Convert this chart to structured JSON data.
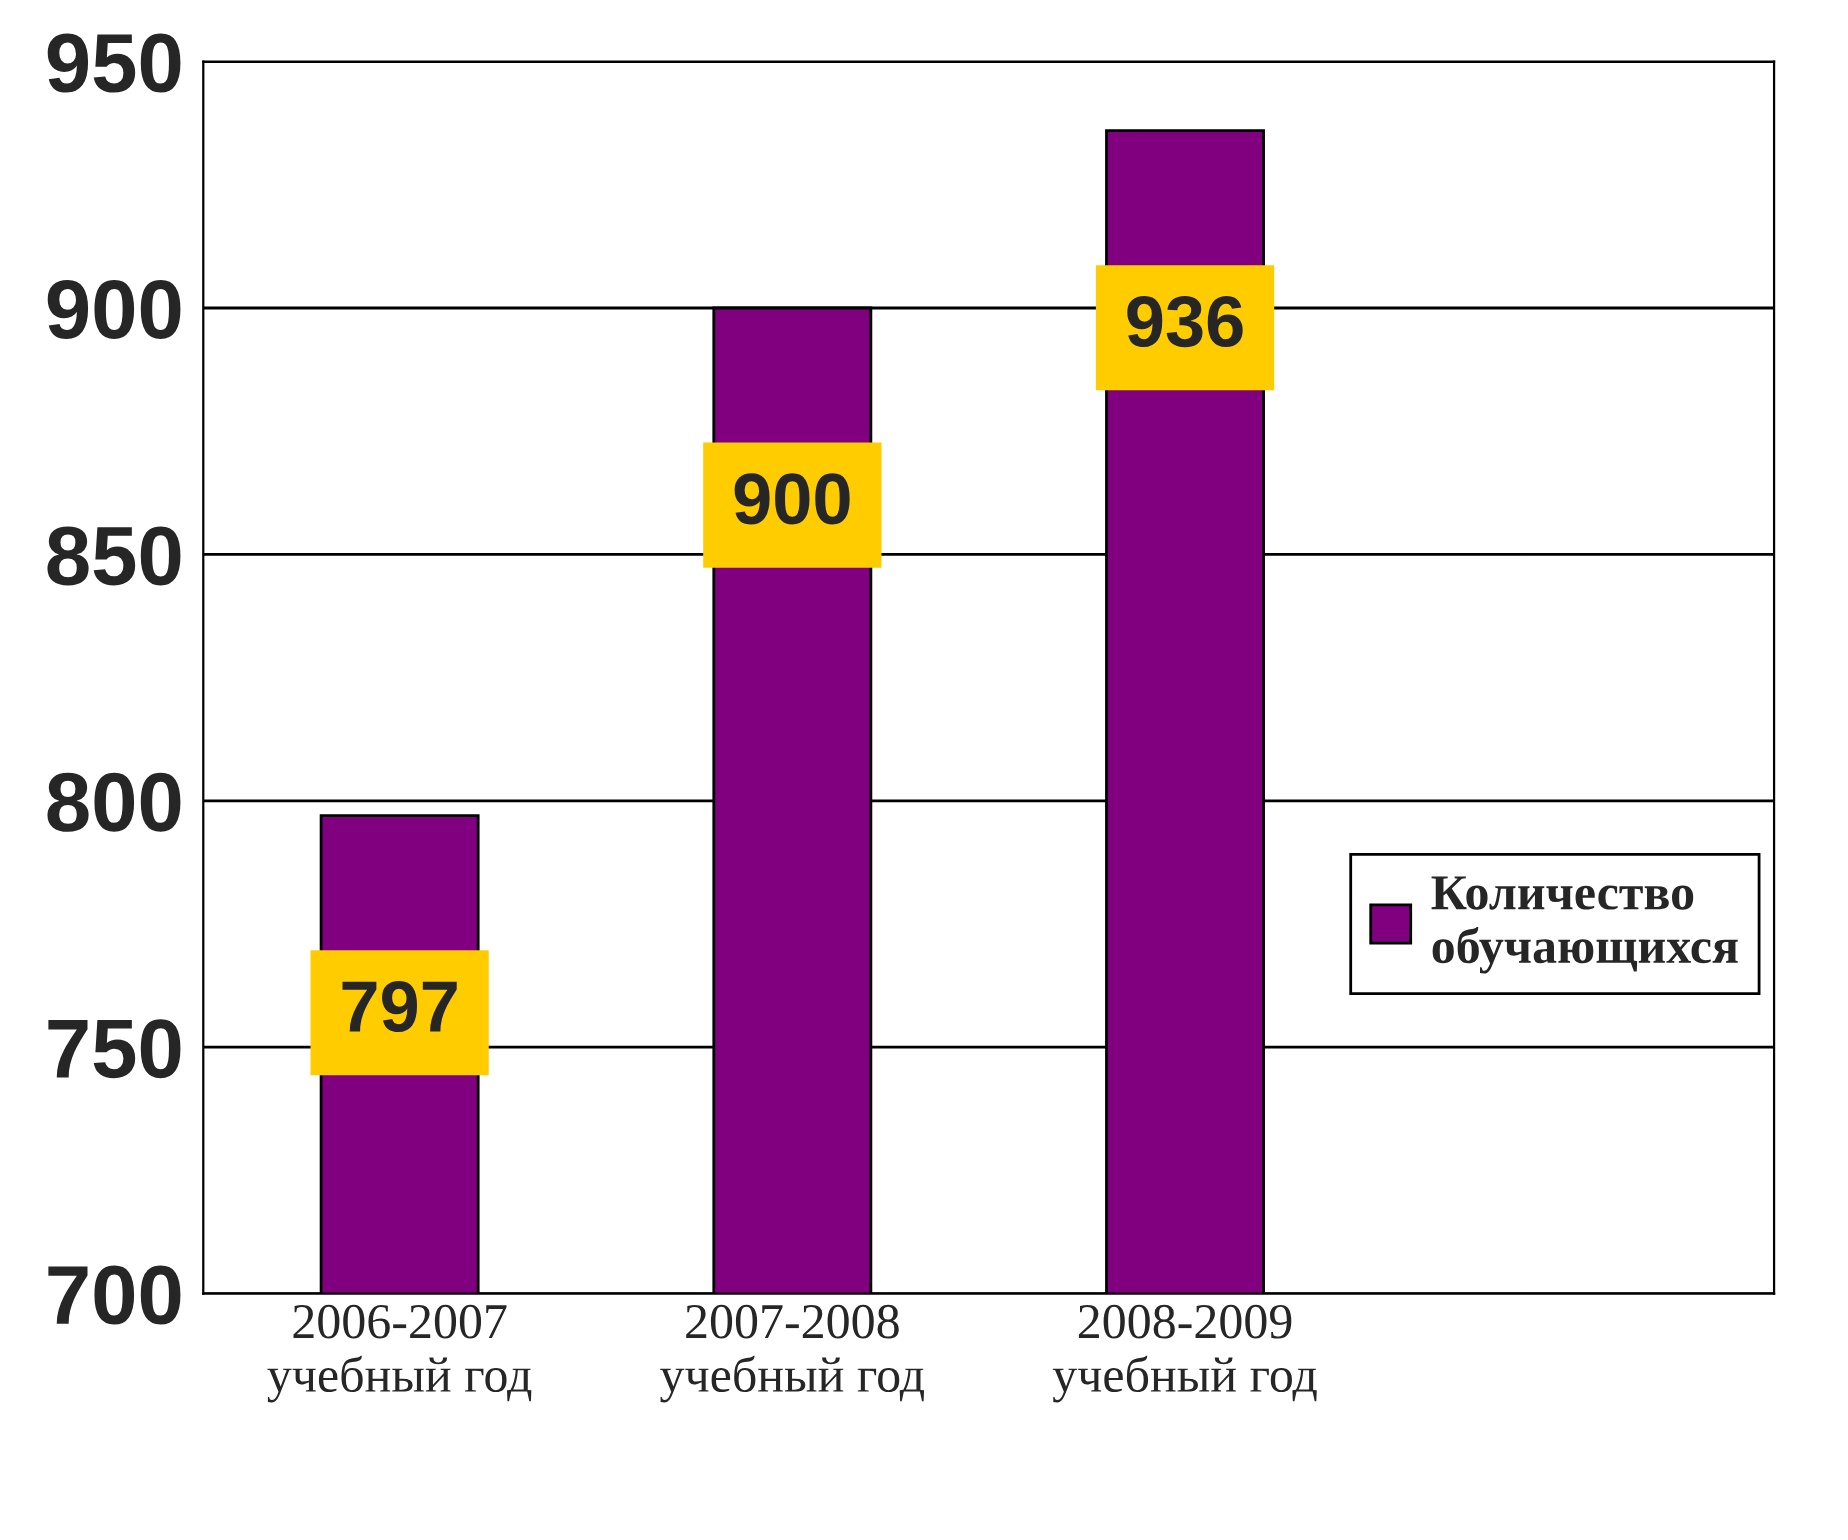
{
  "chart_data": {
    "type": "bar",
    "categories": [
      "2006-2007\nучебный год",
      "2007-2008\nучебный год",
      "2008-2009\nучебный год",
      null
    ],
    "series": [
      {
        "name": "Количество обучающихся",
        "color": "#800080",
        "values": [
          797,
          900,
          936,
          null
        ]
      }
    ],
    "ylim": [
      700,
      950
    ],
    "yticks": [
      700,
      750,
      800,
      850,
      900,
      950
    ],
    "grid": "y",
    "legend": "right",
    "data_labels": true
  }
}
